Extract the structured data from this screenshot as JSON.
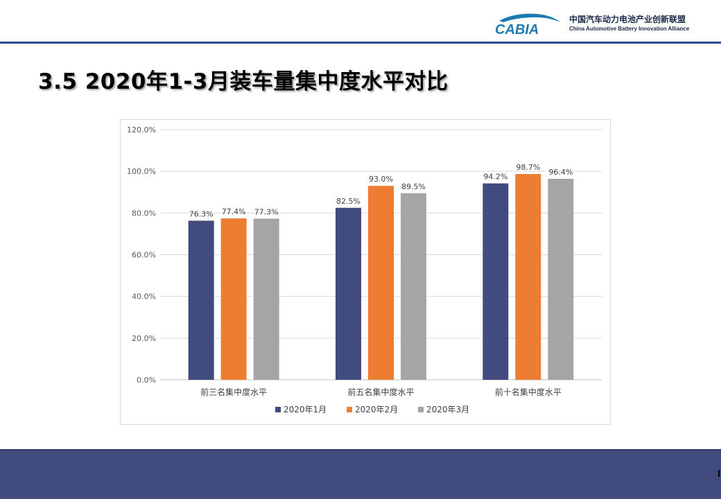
{
  "header": {
    "logo_mark_text": "CABIA",
    "logo_cn": "中国汽车动力电池产业创新联盟",
    "logo_en": "China Automotive Battery Innovation Alliance",
    "title": "3.5 2020年1-3月装车量集中度水平对比"
  },
  "colors": {
    "header_rule": "#2f4b8f",
    "footer_band": "#414b7d",
    "series": [
      "#414b7d",
      "#ed7d31",
      "#a5a5a5"
    ],
    "logo_blue": "#1f7ab4",
    "logo_dark": "#1b2a4a"
  },
  "chart_data": {
    "type": "bar",
    "categories": [
      "前三名集中度水平",
      "前五名集中度水平",
      "前十名集中度水平"
    ],
    "series": [
      {
        "name": "2020年1月",
        "values": [
          76.3,
          82.5,
          94.2
        ],
        "labels": [
          "76.3%",
          "82.5%",
          "94.2%"
        ]
      },
      {
        "name": "2020年2月",
        "values": [
          77.4,
          93.0,
          98.7
        ],
        "labels": [
          "77.4%",
          "93.0%",
          "98.7%"
        ]
      },
      {
        "name": "2020年3月",
        "values": [
          77.3,
          89.5,
          96.4
        ],
        "labels": [
          "77.3%",
          "89.5%",
          "96.4%"
        ]
      }
    ],
    "ylim": [
      0,
      120
    ],
    "yticks": [
      0,
      20,
      40,
      60,
      80,
      100,
      120
    ],
    "ytick_labels": [
      "0.0%",
      "20.0%",
      "40.0%",
      "60.0%",
      "80.0%",
      "100.0%",
      "120.0%"
    ],
    "grid": true,
    "legend_position": "bottom"
  }
}
